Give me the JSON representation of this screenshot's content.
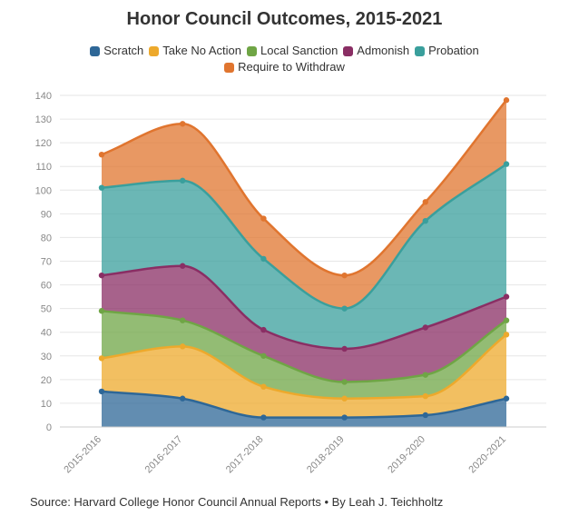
{
  "chart_data": {
    "type": "area",
    "title": "Honor Council Outcomes, 2015-2021",
    "source": "Source: Harvard College Honor Council Annual Reports • By Leah J. Teichholtz",
    "categories": [
      "2015-2016",
      "2016-2017",
      "2017-2018",
      "2018-2019",
      "2019-2020",
      "2020-2021"
    ],
    "stacked": true,
    "ylim": [
      0,
      140
    ],
    "yticks": [
      0,
      10,
      20,
      30,
      40,
      50,
      60,
      70,
      80,
      90,
      100,
      110,
      120,
      130,
      140
    ],
    "grid": true,
    "legend_position": "top",
    "series": [
      {
        "name": "Scratch",
        "color": "#2e6797",
        "values": [
          15,
          12,
          4,
          4,
          5,
          12
        ]
      },
      {
        "name": "Take No Action",
        "color": "#eda92c",
        "values": [
          14,
          22,
          13,
          8,
          8,
          27
        ]
      },
      {
        "name": "Local Sanction",
        "color": "#6fa545",
        "values": [
          20,
          11,
          13,
          7,
          9,
          6
        ]
      },
      {
        "name": "Admonish",
        "color": "#8a2e64",
        "values": [
          15,
          23,
          11,
          14,
          20,
          10
        ]
      },
      {
        "name": "Probation",
        "color": "#3a9f9c",
        "values": [
          37,
          36,
          30,
          17,
          45,
          56
        ]
      },
      {
        "name": "Require to Withdraw",
        "color": "#e0752f",
        "values": [
          14,
          24,
          17,
          14,
          8,
          27
        ]
      }
    ]
  }
}
